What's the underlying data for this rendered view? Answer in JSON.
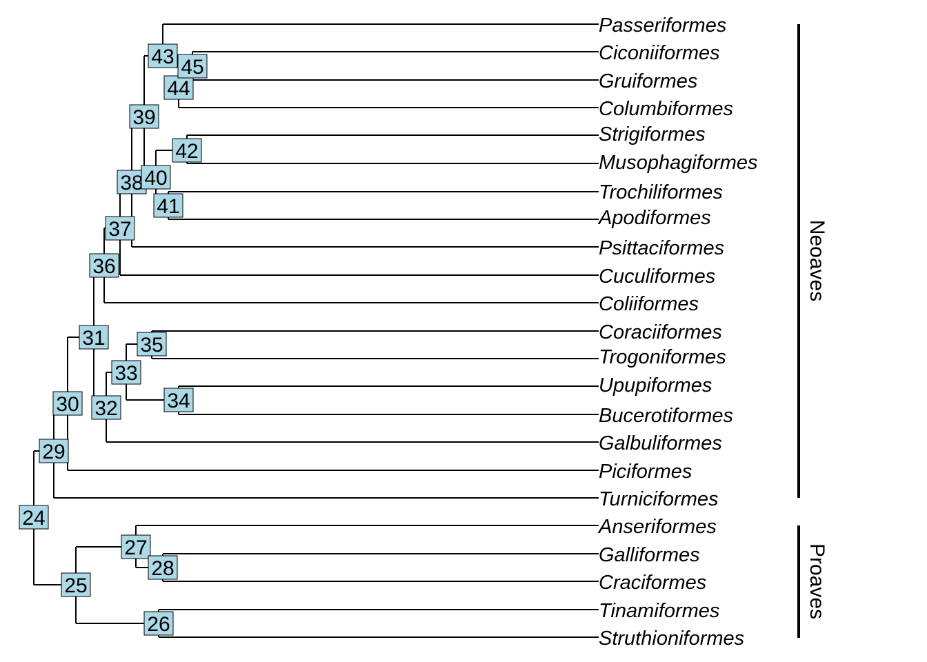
{
  "tree": {
    "tips": [
      "Passeriformes",
      "Ciconiiformes",
      "Gruiformes",
      "Columbiformes",
      "Strigiformes",
      "Musophagiformes",
      "Trochiliformes",
      "Apodiformes",
      "Psittaciformes",
      "Cuculiformes",
      "Coliiformes",
      "Coraciiformes",
      "Trogoniformes",
      "Upupiformes",
      "Bucerotiformes",
      "Galbuliformes",
      "Piciformes",
      "Turniciformes",
      "Anseriformes",
      "Galliformes",
      "Craciformes",
      "Tinamiformes",
      "Struthioniformes"
    ],
    "node_labels": [
      "24",
      "25",
      "26",
      "27",
      "28",
      "29",
      "30",
      "31",
      "32",
      "33",
      "34",
      "35",
      "36",
      "37",
      "38",
      "39",
      "40",
      "41",
      "42",
      "43",
      "44",
      "45"
    ],
    "node_fill": "#add8e6",
    "clades": [
      {
        "name": "Neoaves"
      },
      {
        "name": "Proaves"
      }
    ]
  }
}
